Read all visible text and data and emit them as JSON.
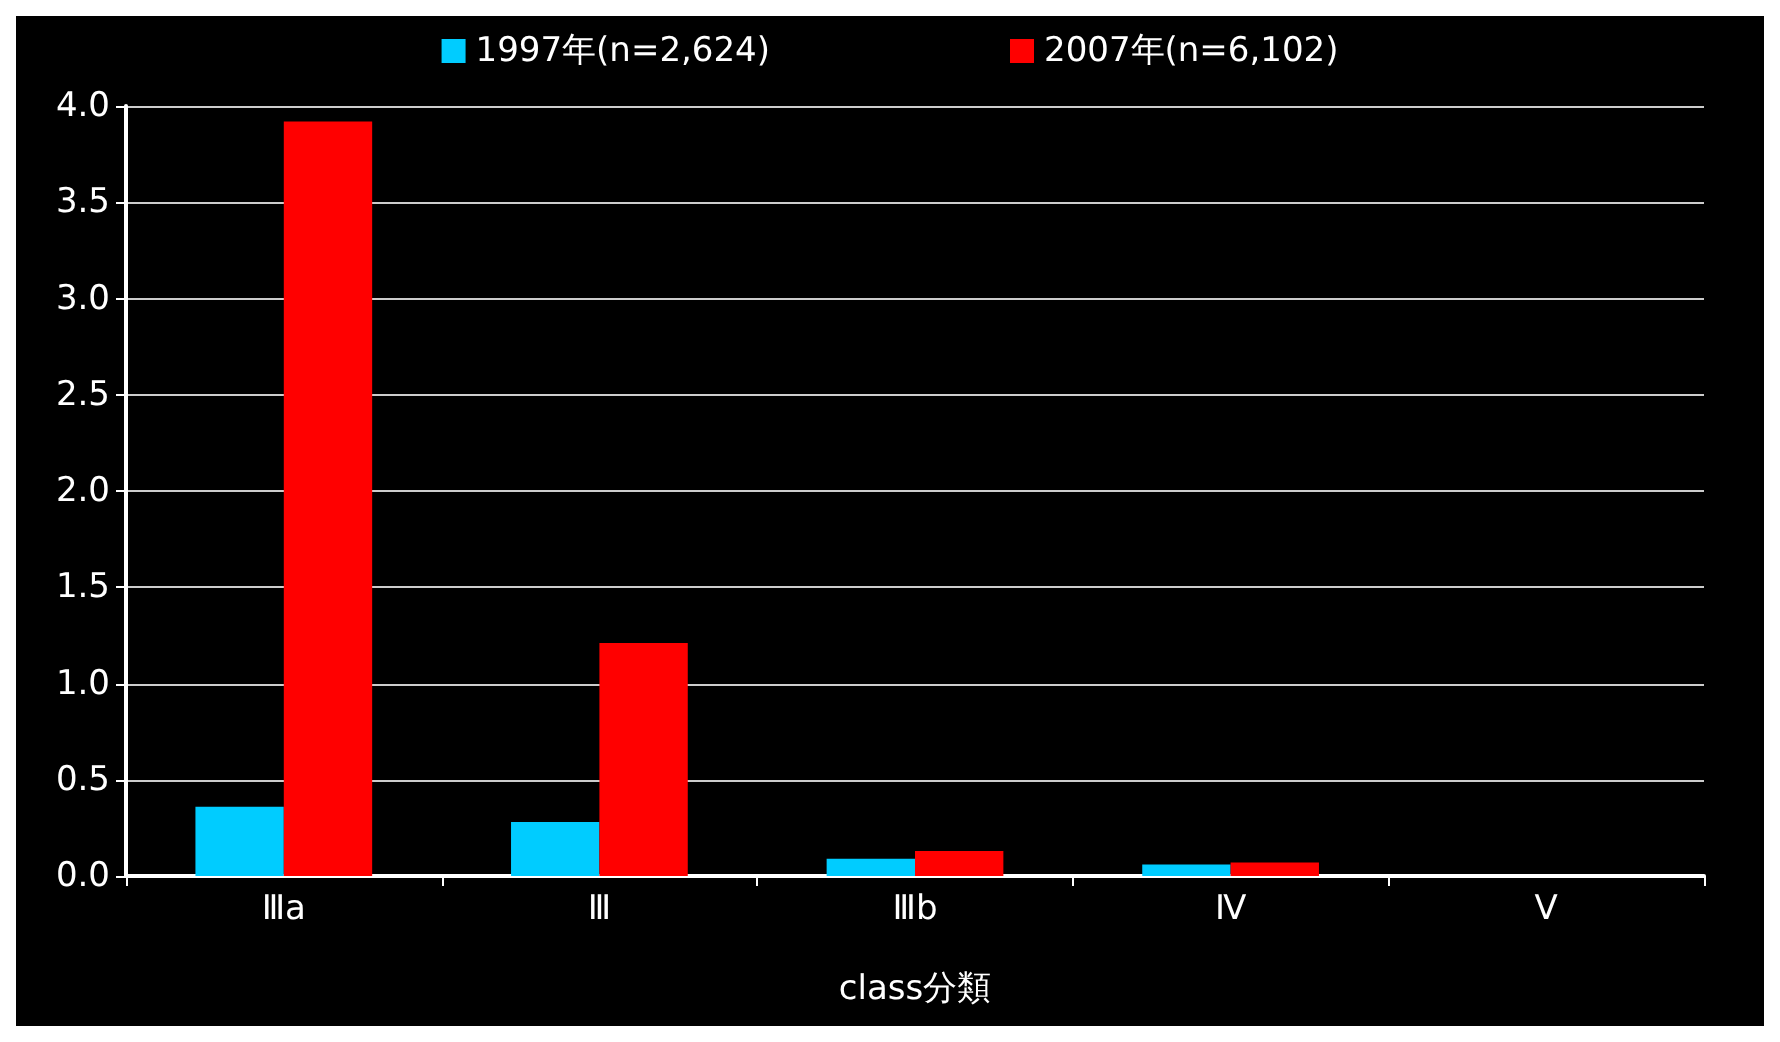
{
  "chart_data": {
    "type": "bar",
    "xlabel": "class分類",
    "categories": [
      "Ⅲa",
      "Ⅲ",
      "Ⅲb",
      "Ⅳ",
      "Ⅴ"
    ],
    "series": [
      {
        "name": "1997年(n=2,624)",
        "color": "#00ccff",
        "values": [
          0.36,
          0.28,
          0.09,
          0.06,
          0
        ]
      },
      {
        "name": "2007年(n=6,102)",
        "color": "#ff0000",
        "values": [
          3.92,
          1.21,
          0.13,
          0.07,
          0
        ]
      }
    ],
    "ylim": [
      0,
      4
    ],
    "yticks": [
      {
        "value": 0,
        "label": "0.0"
      },
      {
        "value": 0.5,
        "label": "0.5"
      },
      {
        "value": 1,
        "label": "1.0"
      },
      {
        "value": 1.5,
        "label": "1.5"
      },
      {
        "value": 2,
        "label": "2.0"
      },
      {
        "value": 2.5,
        "label": "2.5"
      },
      {
        "value": 3,
        "label": "3.0"
      },
      {
        "value": 3.5,
        "label": "3.5"
      },
      {
        "value": 4,
        "label": "4.0"
      }
    ],
    "grid": "y",
    "legend": "top"
  }
}
